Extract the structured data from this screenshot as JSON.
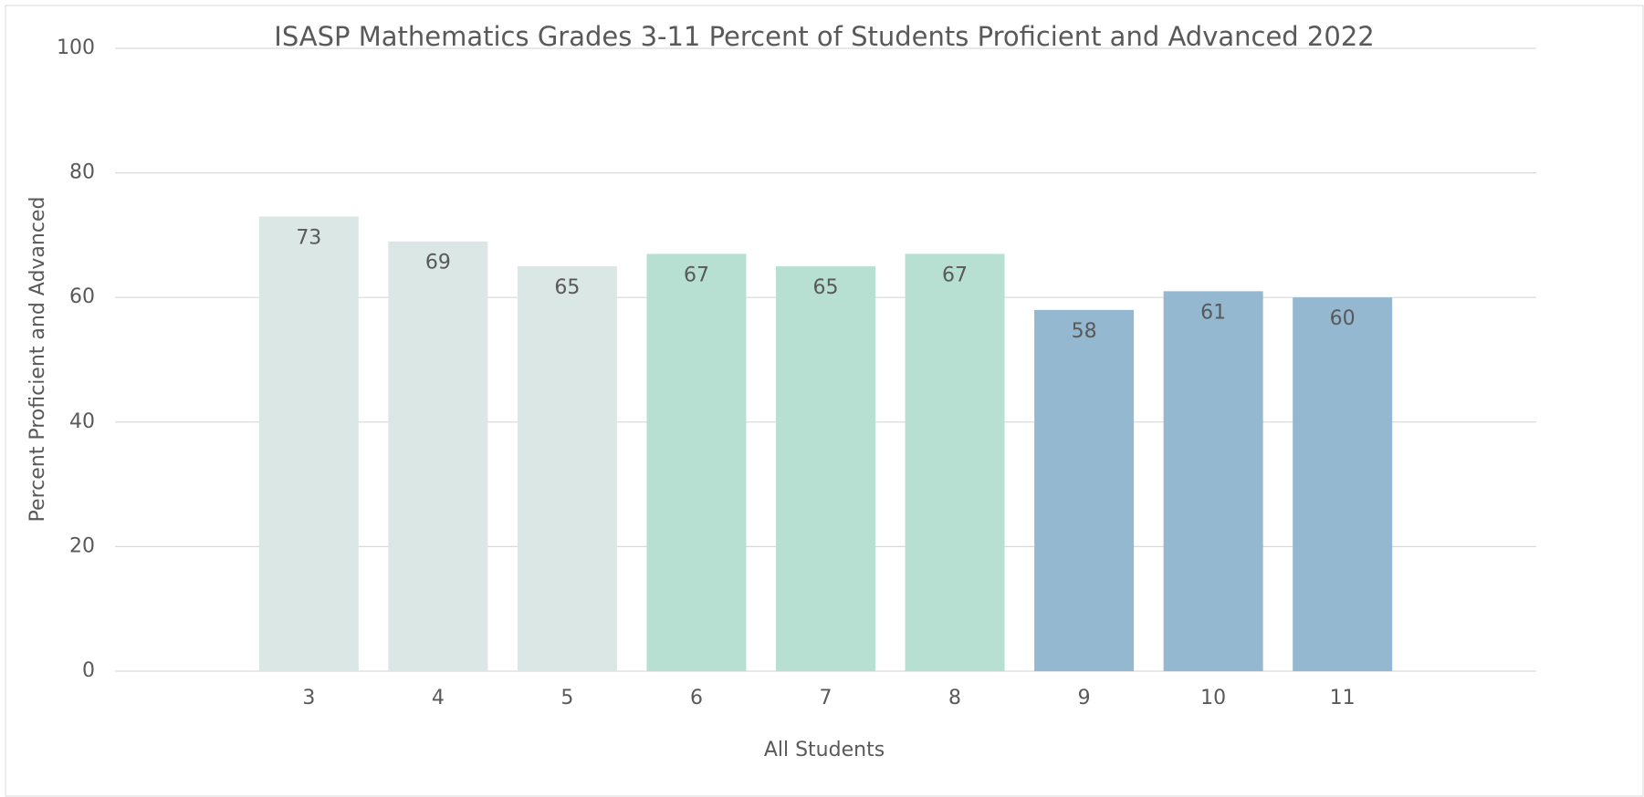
{
  "chart_data": {
    "type": "bar",
    "title": "ISASP Mathematics Grades 3-11 Percent of Students Proficient and Advanced 2022",
    "x_label": "All Students",
    "y_label": "Percent Proficient and Advanced",
    "categories": [
      "3",
      "4",
      "5",
      "6",
      "7",
      "8",
      "9",
      "10",
      "11"
    ],
    "values": [
      73,
      69,
      65,
      67,
      65,
      67,
      58,
      61,
      60
    ],
    "colors": [
      "#dae7e5",
      "#dae7e5",
      "#dae7e5",
      "#b7e0d2",
      "#b7e0d2",
      "#b7e0d2",
      "#94b8d0",
      "#94b8d0",
      "#94b8d0"
    ],
    "ylim": [
      0,
      100
    ],
    "yticks": [
      0,
      20,
      40,
      60,
      80,
      100
    ],
    "grid": true,
    "data_labels": true
  }
}
